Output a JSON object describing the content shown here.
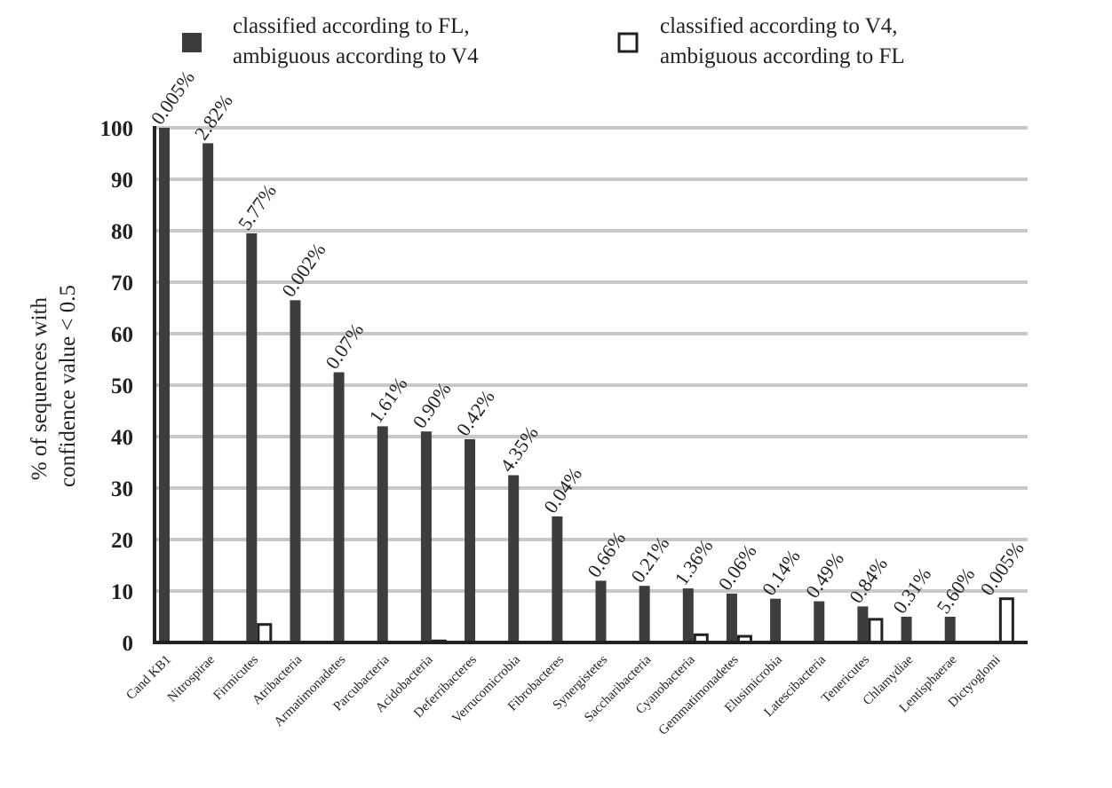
{
  "chart_data": {
    "type": "bar",
    "title": "",
    "xlabel": "",
    "ylabel_lines": [
      "% of sequences with",
      "confidence value < 0.5"
    ],
    "ylim": [
      0,
      100
    ],
    "yticks": [
      "0",
      "10",
      "20",
      "30",
      "40",
      "50",
      "60",
      "70",
      "80",
      "90",
      "100"
    ],
    "grid": true,
    "legend_position": "top",
    "colors": {
      "series_fl": "#3d3d3d",
      "series_v4_stroke": "#222222",
      "grid": "#c8c8c8",
      "text": "#222222"
    },
    "categories": [
      "Cand KB1",
      "Nitrospirae",
      "Firmicutes",
      "Atribacteria",
      "Armatimonadetes",
      "Parcubacteria",
      "Acidobacteria",
      "Deferribacteres",
      "Verrucomicrobia",
      "Fibrobacteres",
      "Synergistetes",
      "Saccharibacteria",
      "Cyanobacteria",
      "Gemmatimonadetes",
      "Elusimicrobia",
      "Latescibacteria",
      "Tenericutes",
      "Chlamydiae",
      "Lentisphaerae",
      "Dictyoglomi"
    ],
    "series": [
      {
        "name_lines": [
          "classified according to FL,",
          "ambiguous according to V4"
        ],
        "style": "filled",
        "values": [
          100,
          97,
          79.5,
          66.5,
          52.5,
          42,
          41,
          39.5,
          32.5,
          24.5,
          12,
          11,
          10.5,
          9.5,
          8.5,
          8,
          7,
          5,
          5,
          0
        ]
      },
      {
        "name_lines": [
          "classified according to V4,",
          "ambiguous according to FL"
        ],
        "style": "outline",
        "values": [
          0,
          0,
          3.5,
          0,
          0,
          0,
          0.3,
          0,
          0,
          0,
          0,
          0,
          1.5,
          1.2,
          0,
          0,
          4.5,
          0,
          0,
          8.5
        ]
      }
    ],
    "bar_labels": [
      "0.005%",
      "2.82%",
      "5.77%",
      "0.002%",
      "0.07%",
      "1.61%",
      "0.90%",
      "0.42%",
      "4.35%",
      "0.04%",
      "0.66%",
      "0.21%",
      "1.36%",
      "0.06%",
      "0.14%",
      "0.49%",
      "0.84%",
      "0.31%",
      "5.60%",
      "0.005%"
    ]
  }
}
